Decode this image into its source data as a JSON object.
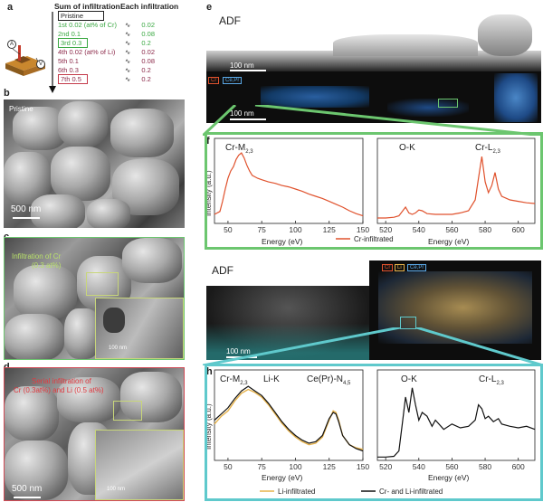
{
  "panel_a": {
    "label": "a",
    "header_sum": "Sum of infiltration",
    "header_each": "Each infiltration",
    "electrode_A": "A",
    "electrode_V": "V",
    "steps": [
      {
        "text": "Pristine",
        "color": "#222222",
        "boxed": true,
        "each": ""
      },
      {
        "text": "1st 0.02 (at% of Cr)",
        "color": "#3aa842",
        "boxed": false,
        "each": "0.02"
      },
      {
        "text": "2nd 0.1",
        "color": "#3aa842",
        "boxed": false,
        "each": "0.08"
      },
      {
        "text": "3rd 0.3",
        "color": "#3aa842",
        "boxed": true,
        "each": "0.2"
      },
      {
        "text": "4th 0.02 (at% of Li)",
        "color": "#8c2a4a",
        "boxed": false,
        "each": "0.02"
      },
      {
        "text": "5th 0.1",
        "color": "#8c2a4a",
        "boxed": false,
        "each": "0.08"
      },
      {
        "text": "6th 0.3",
        "color": "#8c2a4a",
        "boxed": false,
        "each": "0.2"
      },
      {
        "text": "7th 0.5",
        "color": "#8c2a4a",
        "boxed": true,
        "each": "0.2"
      }
    ]
  },
  "panel_b": {
    "label": "b",
    "title": "Pristine",
    "scale": "500 nm"
  },
  "panel_c": {
    "label": "c",
    "title": "Infiltration of Cr",
    "subtitle": "(0.3 at%)",
    "inset_scale": "100 nm"
  },
  "panel_d": {
    "label": "d",
    "title": "Serial infiltration of",
    "subtitle": "Cr (0.3at%) and Li (0.5 at%)",
    "scale": "500 nm",
    "inset_scale": "100 nm"
  },
  "panel_e": {
    "label": "e",
    "title": "ADF",
    "scale_top": "100 nm",
    "scale_bottom": "100 nm",
    "legend_cr": "Cr",
    "legend_cepr": "Ce,Pr"
  },
  "panel_f": {
    "label": "f",
    "legend": "Cr-infiltrated"
  },
  "panel_g": {
    "label": "g",
    "title": "ADF",
    "scale": "100 nm",
    "legend_cr": "Cr",
    "legend_li": "Li",
    "legend_cepr": "Ce,Pr"
  },
  "panel_h": {
    "label": "h",
    "legend_li": "Li-infiltrated",
    "legend_crli": "Cr- and Li-infiltrated"
  },
  "colors": {
    "green": "#6cc66f",
    "cyan": "#5fc9cc",
    "cr": "#e0522d",
    "li": "#e6b24a",
    "black": "#111111"
  },
  "chart_data": [
    {
      "id": "f-left",
      "type": "line",
      "xlabel": "Energy (eV)",
      "ylabel": "Intensity (a.u.)",
      "xlim": [
        40,
        150
      ],
      "xticks": [
        50,
        75,
        100,
        125,
        150
      ],
      "annotation": "Cr-M2,3",
      "series": [
        {
          "name": "Cr-infiltrated",
          "color": "#e0522d",
          "x": [
            40,
            44,
            46,
            48,
            50,
            52,
            54,
            56,
            58,
            60,
            62,
            64,
            66,
            68,
            70,
            72,
            75,
            80,
            85,
            90,
            95,
            100,
            105,
            110,
            115,
            120,
            125,
            130,
            135,
            140,
            145,
            150
          ],
          "y": [
            0.1,
            0.14,
            0.28,
            0.45,
            0.6,
            0.7,
            0.76,
            0.86,
            0.92,
            0.95,
            0.88,
            0.78,
            0.7,
            0.64,
            0.62,
            0.6,
            0.58,
            0.55,
            0.53,
            0.5,
            0.48,
            0.45,
            0.42,
            0.38,
            0.35,
            0.32,
            0.28,
            0.24,
            0.2,
            0.15,
            0.11,
            0.08
          ]
        }
      ]
    },
    {
      "id": "f-right",
      "type": "line",
      "xlabel": "Energy (eV)",
      "ylabel": "",
      "xlim": [
        515,
        610
      ],
      "xticks": [
        520,
        540,
        560,
        580,
        600
      ],
      "annotations": [
        "O-K",
        "Cr-L2,3"
      ],
      "series": [
        {
          "name": "Cr-infiltrated",
          "color": "#e0522d",
          "x": [
            515,
            520,
            525,
            528,
            530,
            532,
            534,
            536,
            538,
            540,
            542,
            545,
            550,
            555,
            560,
            565,
            570,
            574,
            576,
            578,
            580,
            582,
            584,
            586,
            588,
            590,
            595,
            600,
            605,
            610
          ],
          "y": [
            0.05,
            0.05,
            0.06,
            0.08,
            0.14,
            0.2,
            0.12,
            0.1,
            0.12,
            0.16,
            0.15,
            0.11,
            0.1,
            0.1,
            0.1,
            0.12,
            0.15,
            0.3,
            0.6,
            0.9,
            0.55,
            0.4,
            0.5,
            0.68,
            0.45,
            0.35,
            0.3,
            0.28,
            0.26,
            0.25
          ]
        }
      ]
    },
    {
      "id": "h-left",
      "type": "line",
      "xlabel": "Energy (eV)",
      "ylabel": "Intensity (a.u.)",
      "xlim": [
        40,
        150
      ],
      "xticks": [
        50,
        75,
        100,
        125,
        150
      ],
      "annotations": [
        "Cr-M2,3",
        "Li-K",
        "Ce(Pr)-N4,5"
      ],
      "series": [
        {
          "name": "Li-infiltrated",
          "color": "#e6b24a",
          "x": [
            40,
            45,
            50,
            55,
            60,
            65,
            70,
            75,
            80,
            85,
            90,
            95,
            100,
            105,
            110,
            115,
            120,
            125,
            128,
            130,
            132,
            135,
            140,
            145,
            150
          ],
          "y": [
            0.45,
            0.55,
            0.62,
            0.75,
            0.85,
            0.9,
            0.86,
            0.8,
            0.7,
            0.58,
            0.46,
            0.36,
            0.28,
            0.22,
            0.18,
            0.2,
            0.28,
            0.5,
            0.62,
            0.6,
            0.5,
            0.3,
            0.18,
            0.14,
            0.12
          ]
        },
        {
          "name": "Cr- and Li-infiltrated",
          "color": "#111111",
          "x": [
            40,
            45,
            50,
            55,
            60,
            65,
            70,
            75,
            80,
            85,
            90,
            95,
            100,
            105,
            110,
            115,
            120,
            125,
            128,
            130,
            132,
            135,
            140,
            145,
            150
          ],
          "y": [
            0.5,
            0.58,
            0.66,
            0.78,
            0.88,
            0.94,
            0.88,
            0.82,
            0.72,
            0.6,
            0.48,
            0.38,
            0.3,
            0.24,
            0.2,
            0.22,
            0.3,
            0.52,
            0.6,
            0.58,
            0.48,
            0.3,
            0.18,
            0.13,
            0.1
          ]
        }
      ]
    },
    {
      "id": "h-right",
      "type": "line",
      "xlabel": "Energy (eV)",
      "ylabel": "",
      "xlim": [
        515,
        610
      ],
      "xticks": [
        520,
        540,
        560,
        580,
        600
      ],
      "annotations": [
        "O-K",
        "Cr-L2,3"
      ],
      "series": [
        {
          "name": "Cr- and Li-infiltrated",
          "color": "#111111",
          "x": [
            515,
            520,
            525,
            528,
            530,
            532,
            534,
            536,
            538,
            540,
            542,
            545,
            548,
            550,
            555,
            560,
            565,
            570,
            574,
            576,
            578,
            580,
            582,
            585,
            588,
            590,
            595,
            600,
            605,
            610
          ],
          "y": [
            0.02,
            0.02,
            0.03,
            0.1,
            0.45,
            0.8,
            0.6,
            0.92,
            0.7,
            0.5,
            0.6,
            0.55,
            0.42,
            0.5,
            0.38,
            0.45,
            0.4,
            0.42,
            0.5,
            0.7,
            0.65,
            0.52,
            0.55,
            0.48,
            0.52,
            0.45,
            0.42,
            0.4,
            0.42,
            0.38
          ]
        }
      ]
    }
  ]
}
